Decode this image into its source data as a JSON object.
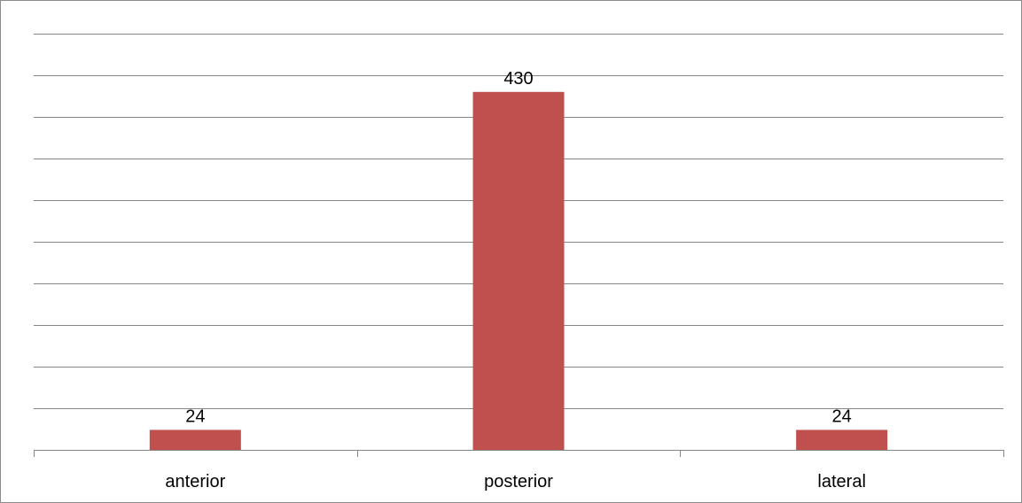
{
  "chart_data": {
    "type": "bar",
    "categories": [
      "anterior",
      "posterior",
      "lateral"
    ],
    "values": [
      24,
      430,
      24
    ],
    "data_labels": [
      "24",
      "430",
      "24"
    ],
    "title": "",
    "xlabel": "",
    "ylabel": "",
    "ylim": [
      0,
      500
    ],
    "y_gridline_step": 50,
    "grid": true,
    "legend": "none",
    "bar_color": "#C0504D"
  }
}
